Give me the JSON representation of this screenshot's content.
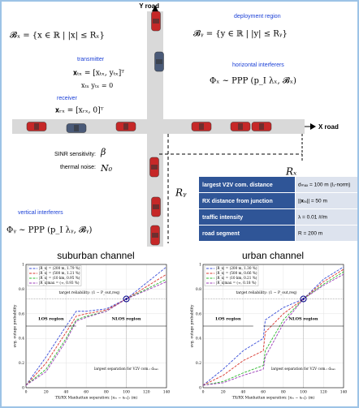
{
  "diagram": {
    "y_road": "Y road",
    "x_road": "X road",
    "deployment_region": "deployment region",
    "B_x": "𝓑ₓ = {x ∈ ℝ | |x| ≤ Rₓ}",
    "B_y": "𝓑ᵧ = {y ∈ ℝ | |y| ≤ Rᵧ}",
    "transmitter": {
      "label": "transmitter",
      "position": "𝐱ₜₓ = [xₜₓ, yₜₓ]ᵀ",
      "constraint": "xₜₓ yₜₓ = 0"
    },
    "receiver": {
      "label": "receiver",
      "position": "𝐱ᵣₓ = [xᵣₓ, 0]ᵀ"
    },
    "horizontal_interferers": {
      "label": "horizontal interferers",
      "model": "Φₓ ~ PPP (p_I λₓ, 𝓑ₓ)"
    },
    "vertical_interferers": {
      "label": "vertical interferers",
      "model": "Φᵧ ~ PPP (p_I λᵧ, 𝓑ᵧ)"
    },
    "sinr": "SINR sensitivity:",
    "beta": "β",
    "noise": "thermal noise:",
    "n0": "N₀",
    "r_x": "Rₓ",
    "r_y": "Rᵧ"
  },
  "table": {
    "rows": [
      [
        "largest V2V com. distance",
        "dₘₐₓ = 100 m  (l₁-norm)"
      ],
      [
        "RX distance from junction",
        "||𝐱ᵣₓ|| = 50 m"
      ],
      [
        "traffic intensity",
        "λ = 0.01 #/m"
      ],
      [
        "road segment",
        "R = 200 m"
      ]
    ]
  },
  "chart_data": [
    {
      "type": "line",
      "title": "suburban channel",
      "x_label": "TX/RX Manhattan separation: |xₜₓ − xᵣₓ|₁ (m)",
      "y_label": "avg. outage probability",
      "x": [
        0,
        20,
        40,
        50,
        60,
        80,
        100,
        120,
        140
      ],
      "series": [
        {
          "name": "|R_x| = (200 m, 1.79 %)",
          "color": "#3b4fd8",
          "values": [
            0.02,
            0.25,
            0.5,
            0.62,
            0.62,
            0.64,
            0.72,
            0.85,
            0.98
          ]
        },
        {
          "name": "|R_x| = (500 m, 1.21 %)",
          "color": "#d8342c",
          "values": [
            0.02,
            0.2,
            0.45,
            0.58,
            0.6,
            0.63,
            0.72,
            0.82,
            0.92
          ]
        },
        {
          "name": "|R_x| = (10 km, 0.95 %)",
          "color": "#2fb82f",
          "values": [
            0.02,
            0.15,
            0.4,
            0.55,
            0.58,
            0.62,
            0.72,
            0.8,
            0.88
          ]
        },
        {
          "name": "|R_x|max = (∞, 0.93 %)",
          "color": "#9b3bb8",
          "values": [
            0.02,
            0.13,
            0.38,
            0.54,
            0.57,
            0.62,
            0.72,
            0.79,
            0.86
          ]
        }
      ],
      "target_x": 100,
      "target_y": 0.72,
      "annotations": [
        "target reliability: (1 − P_out,req)",
        "LOS region",
        "NLOS region",
        "largest separation for V2V com.: dₘₐₓ"
      ],
      "xlim": [
        0,
        140
      ],
      "ylim": [
        0,
        1
      ],
      "xticks": [
        0,
        20,
        40,
        60,
        80,
        100,
        120,
        140
      ],
      "yticks": [
        0,
        0.2,
        0.4,
        0.6,
        0.8,
        1
      ]
    },
    {
      "type": "line",
      "title": "urban channel",
      "x_label": "TX/RX Manhattan separation: |xₜₓ − xᵣₓ|₁ (m)",
      "y_label": "avg. outage probability",
      "x": [
        0,
        20,
        40,
        60,
        62,
        80,
        100,
        120,
        140
      ],
      "series": [
        {
          "name": "|R_x| = (200 m, 1.30 %)",
          "color": "#3b4fd8",
          "values": [
            0.02,
            0.15,
            0.3,
            0.4,
            0.55,
            0.65,
            0.72,
            0.88,
            0.98
          ]
        },
        {
          "name": "|R_x| = (500 m, 0.66 %)",
          "color": "#d8342c",
          "values": [
            0.02,
            0.1,
            0.22,
            0.3,
            0.45,
            0.6,
            0.72,
            0.86,
            0.96
          ]
        },
        {
          "name": "|R_x| = (10 km, 0.21 %)",
          "color": "#2fb82f",
          "values": [
            0.02,
            0.05,
            0.12,
            0.18,
            0.3,
            0.55,
            0.72,
            0.84,
            0.94
          ]
        },
        {
          "name": "|R_x|max = (∞, 0.18 %)",
          "color": "#9b3bb8",
          "values": [
            0.02,
            0.04,
            0.1,
            0.15,
            0.25,
            0.52,
            0.72,
            0.83,
            0.92
          ]
        }
      ],
      "target_x": 100,
      "target_y": 0.72,
      "annotations": [
        "target reliability: (1 − P_out,req)",
        "LOS region",
        "NLOS region",
        "largest separation for V2V com.: dₘₐₓ"
      ],
      "xlim": [
        0,
        140
      ],
      "ylim": [
        0,
        1
      ],
      "xticks": [
        0,
        20,
        40,
        60,
        80,
        100,
        120,
        140
      ],
      "yticks": [
        0,
        0.2,
        0.4,
        0.6,
        0.8,
        1
      ]
    }
  ]
}
